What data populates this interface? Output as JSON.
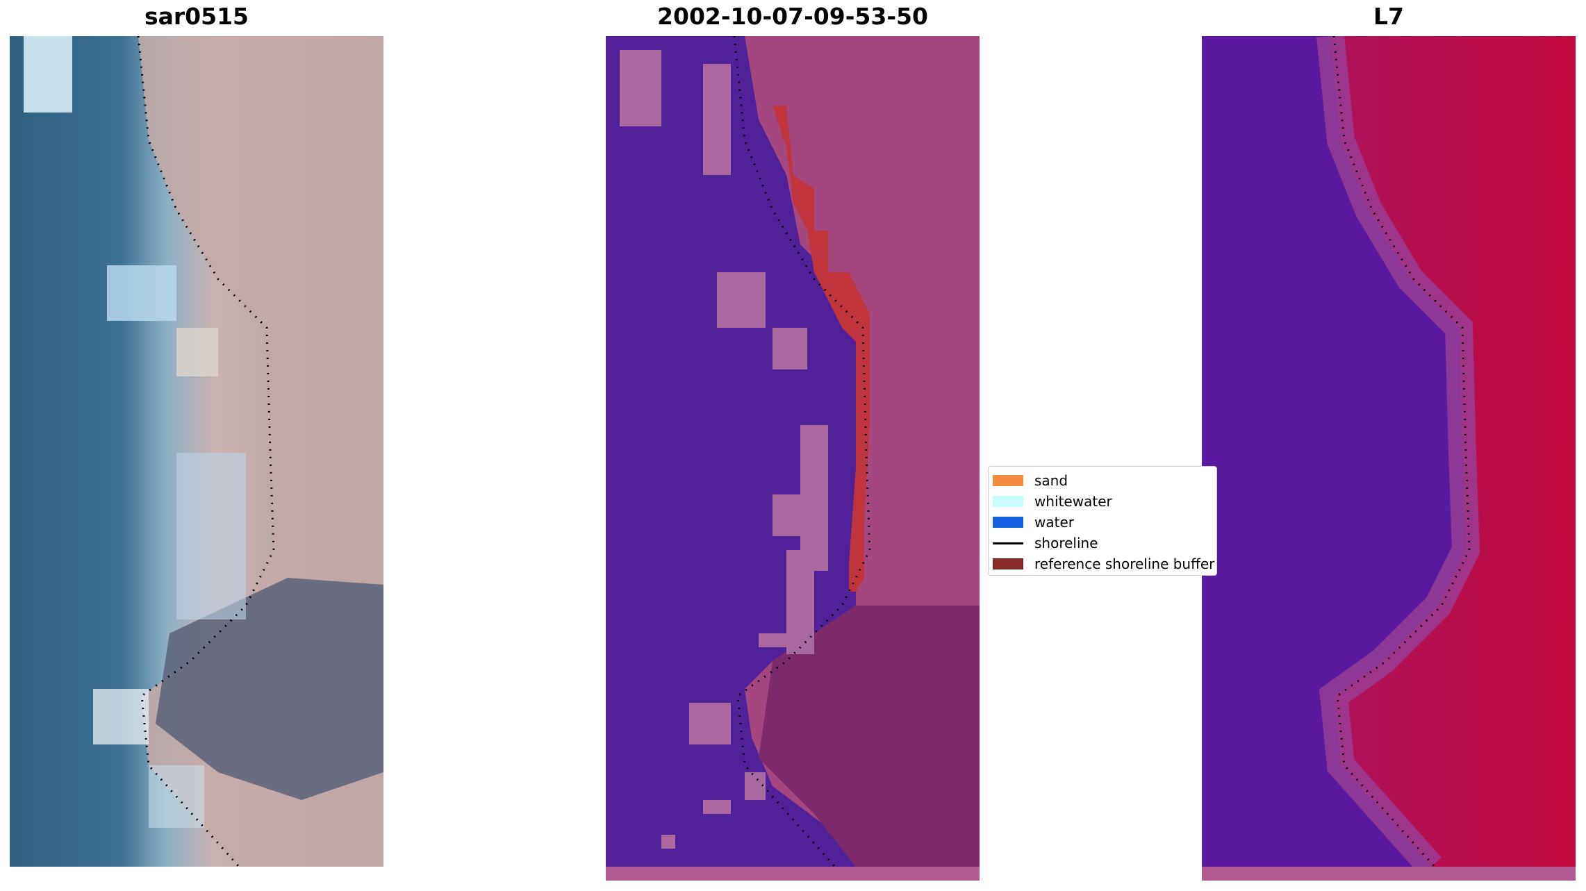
{
  "panels": [
    {
      "title": "sar0515"
    },
    {
      "title": "2002-10-07-09-53-50"
    },
    {
      "title": "L7"
    }
  ],
  "legend": {
    "items": [
      {
        "label": "sand",
        "color": "#f58b3f",
        "kind": "patch"
      },
      {
        "label": "whitewater",
        "color": "#c8fbfb",
        "kind": "patch"
      },
      {
        "label": "water",
        "color": "#1560e0",
        "kind": "patch"
      },
      {
        "label": "shoreline",
        "color": "#000000",
        "kind": "line"
      },
      {
        "label": "reference shoreline buffer",
        "color": "#8b2a2a",
        "kind": "patch"
      }
    ]
  },
  "colors": {
    "panel2_water": "#51219a",
    "panel2_sand": "#a6467e",
    "panel2_noise": "#a86aa0",
    "panel2_buffer": "#c0343e",
    "panel3_water": "#5a1aa0",
    "panel3_land": "#c2083e",
    "bottom_strip": "#b45a93"
  }
}
